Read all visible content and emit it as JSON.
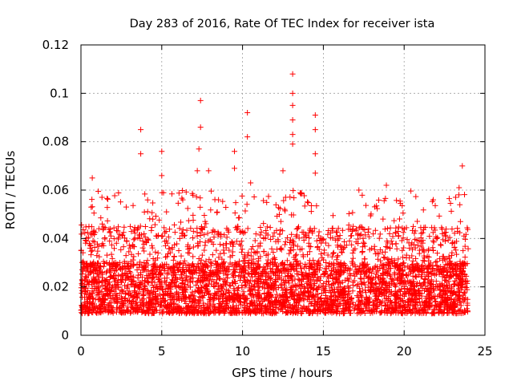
{
  "chart_data": {
    "type": "scatter",
    "title": "Day 283 of 2016, Rate Of TEC Index for receiver ista",
    "xlabel": "GPS time / hours",
    "ylabel": "ROTI / TECUs",
    "xlim": [
      0,
      25
    ],
    "ylim": [
      0,
      0.12
    ],
    "x_ticks": [
      0,
      5,
      10,
      15,
      20,
      25
    ],
    "x_tick_labels": [
      "0",
      "5",
      "10",
      "15",
      "20",
      "25"
    ],
    "y_ticks": [
      0,
      0.02,
      0.04,
      0.06,
      0.08,
      0.1,
      0.12
    ],
    "y_tick_labels": [
      "0",
      "0.02",
      "0.04",
      "0.06",
      "0.08",
      "0.1",
      "0.12"
    ],
    "grid": true,
    "marker": "+",
    "color": "#ff0000",
    "series": [
      {
        "name": "ROTI",
        "note": "dense band of points between ~0.005 and ~0.03 TECU/s across 0-24 h; listed values are the visible outlier peaks",
        "x_range": [
          0,
          24
        ],
        "baseline_range": [
          0.005,
          0.03
        ],
        "peaks": [
          {
            "x": 0.7,
            "y": 0.065
          },
          {
            "x": 1.3,
            "y": 0.057
          },
          {
            "x": 2.8,
            "y": 0.053
          },
          {
            "x": 3.7,
            "y": 0.085
          },
          {
            "x": 3.7,
            "y": 0.075
          },
          {
            "x": 5.0,
            "y": 0.076
          },
          {
            "x": 5.0,
            "y": 0.066
          },
          {
            "x": 6.3,
            "y": 0.056
          },
          {
            "x": 7.2,
            "y": 0.068
          },
          {
            "x": 7.3,
            "y": 0.077
          },
          {
            "x": 7.4,
            "y": 0.097
          },
          {
            "x": 7.4,
            "y": 0.086
          },
          {
            "x": 7.9,
            "y": 0.068
          },
          {
            "x": 9.5,
            "y": 0.076
          },
          {
            "x": 9.5,
            "y": 0.069
          },
          {
            "x": 10.3,
            "y": 0.092
          },
          {
            "x": 10.3,
            "y": 0.082
          },
          {
            "x": 10.5,
            "y": 0.063
          },
          {
            "x": 12.5,
            "y": 0.068
          },
          {
            "x": 13.1,
            "y": 0.108
          },
          {
            "x": 13.1,
            "y": 0.1
          },
          {
            "x": 13.1,
            "y": 0.095
          },
          {
            "x": 13.1,
            "y": 0.089
          },
          {
            "x": 13.1,
            "y": 0.083
          },
          {
            "x": 13.1,
            "y": 0.079
          },
          {
            "x": 14.5,
            "y": 0.091
          },
          {
            "x": 14.5,
            "y": 0.085
          },
          {
            "x": 14.5,
            "y": 0.075
          },
          {
            "x": 14.5,
            "y": 0.067
          },
          {
            "x": 17.2,
            "y": 0.06
          },
          {
            "x": 18.9,
            "y": 0.062
          },
          {
            "x": 21.8,
            "y": 0.056
          },
          {
            "x": 23.4,
            "y": 0.061
          },
          {
            "x": 23.6,
            "y": 0.07
          }
        ]
      }
    ]
  }
}
